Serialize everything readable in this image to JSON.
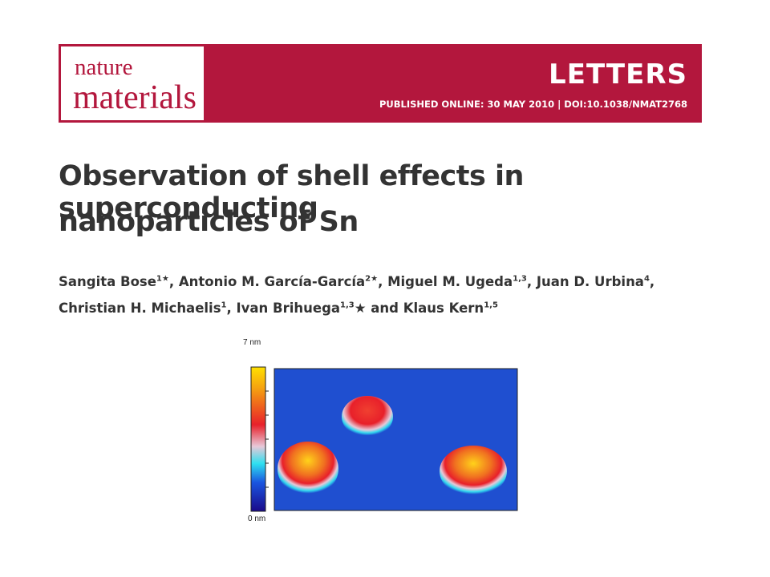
{
  "header": {
    "journal_line1": "nature",
    "journal_line2": "materials",
    "section": "LETTERS",
    "publication": "PUBLISHED ONLINE: 30 MAY 2010 | DOI:10.1038/NMAT2768"
  },
  "title": {
    "line1": "Observation of shell effects in superconducting",
    "line2": "nanoparticles of Sn"
  },
  "authors": [
    [
      {
        "text": "Sangita Bose",
        "sup": "1★"
      },
      {
        "text": ", Antonio M. García-García",
        "sup": "2★"
      },
      {
        "text": ", Miguel M. Ugeda",
        "sup": "1,3"
      },
      {
        "text": ", Juan D. Urbina",
        "sup": "4"
      },
      {
        "text": ","
      }
    ],
    [
      {
        "text": "Christian H. Michaelis",
        "sup": "1"
      },
      {
        "text": ", Ivan Brihuega",
        "sup": "1,3"
      },
      {
        "text": "★ and Klaus Kern",
        "sup": "1,5"
      }
    ]
  ],
  "figure": {
    "scale_top": "7 nm",
    "scale_bottom": "0 nm"
  }
}
